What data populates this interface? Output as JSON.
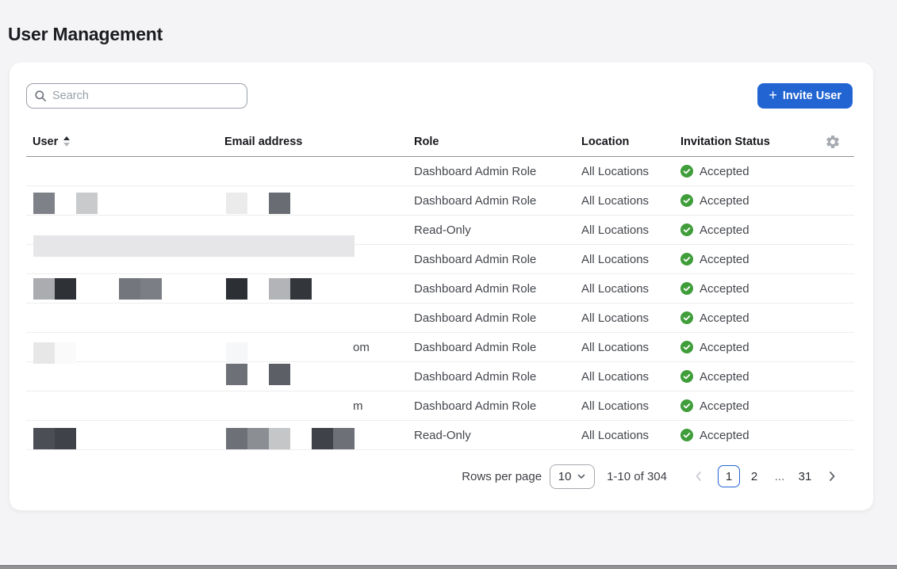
{
  "page": {
    "title": "User Management"
  },
  "toolbar": {
    "search_placeholder": "Search",
    "invite_button": "Invite User",
    "invite_plus": "+"
  },
  "table": {
    "headers": {
      "user": "User",
      "email": "Email address",
      "role": "Role",
      "location": "Location",
      "status": "Invitation Status"
    },
    "rows": [
      {
        "role": "Dashboard Admin Role",
        "location": "All Locations",
        "status": "Accepted",
        "email_tail": ""
      },
      {
        "role": "Dashboard Admin Role",
        "location": "All Locations",
        "status": "Accepted",
        "email_tail": ""
      },
      {
        "role": "Read-Only",
        "location": "All Locations",
        "status": "Accepted",
        "email_tail": ""
      },
      {
        "role": "Dashboard Admin Role",
        "location": "All Locations",
        "status": "Accepted",
        "email_tail": ""
      },
      {
        "role": "Dashboard Admin Role",
        "location": "All Locations",
        "status": "Accepted",
        "email_tail": ""
      },
      {
        "role": "Dashboard Admin Role",
        "location": "All Locations",
        "status": "Accepted",
        "email_tail": ""
      },
      {
        "role": "Dashboard Admin Role",
        "location": "All Locations",
        "status": "Accepted",
        "email_tail": "om"
      },
      {
        "role": "Dashboard Admin Role",
        "location": "All Locations",
        "status": "Accepted",
        "email_tail": ""
      },
      {
        "role": "Dashboard Admin Role",
        "location": "All Locations",
        "status": "Accepted",
        "email_tail": "m"
      },
      {
        "role": "Read-Only",
        "location": "All Locations",
        "status": "Accepted",
        "email_tail": ""
      }
    ]
  },
  "pagination": {
    "rows_per_page_label": "Rows per page",
    "rows_per_page_value": "10",
    "range": "1-10 of 304",
    "page_1": "1",
    "page_2": "2",
    "ellipsis": "...",
    "page_last": "31",
    "current_page": "1"
  },
  "colors": {
    "accent": "#2265d2",
    "success": "#3f9d3a"
  },
  "redaction_blocks": [
    {
      "row": 0,
      "col": 0,
      "span": 1,
      "color": "#7e8187"
    },
    {
      "row": 0,
      "col": 2,
      "span": 1,
      "color": "#c9cacc"
    },
    {
      "row": 0,
      "col": 9,
      "span": 1,
      "color": "#ebebec"
    },
    {
      "row": 0,
      "col": 11,
      "span": 1,
      "color": "#696c72"
    },
    {
      "row": 2,
      "col": 0,
      "span": 15,
      "color": "#e6e6e8"
    },
    {
      "row": 4,
      "col": 0,
      "span": 1,
      "color": "#aaacb0"
    },
    {
      "row": 4,
      "col": 1,
      "span": 1,
      "color": "#2e3136"
    },
    {
      "row": 4,
      "col": 4,
      "span": 1,
      "color": "#73767c"
    },
    {
      "row": 4,
      "col": 5,
      "span": 1,
      "color": "#7b7e84"
    },
    {
      "row": 4,
      "col": 9,
      "span": 1,
      "color": "#2c2f34"
    },
    {
      "row": 4,
      "col": 11,
      "span": 1,
      "color": "#b3b4b7"
    },
    {
      "row": 4,
      "col": 12,
      "span": 1,
      "color": "#33363b"
    },
    {
      "row": 7,
      "col": 0,
      "span": 1,
      "color": "#e7e7e8"
    },
    {
      "row": 7,
      "col": 1,
      "span": 1,
      "color": "#fafafa"
    },
    {
      "row": 7,
      "col": 9,
      "span": 1,
      "color": "#f6f7f8"
    },
    {
      "row": 8,
      "col": 9,
      "span": 1,
      "color": "#6d7076"
    },
    {
      "row": 8,
      "col": 11,
      "span": 1,
      "color": "#5c5f65"
    },
    {
      "row": 11,
      "col": 0,
      "span": 1,
      "color": "#4b4e54"
    },
    {
      "row": 11,
      "col": 1,
      "span": 1,
      "color": "#3f4248"
    },
    {
      "row": 11,
      "col": 9,
      "span": 1,
      "color": "#6d7076"
    },
    {
      "row": 11,
      "col": 10,
      "span": 1,
      "color": "#8b8e93"
    },
    {
      "row": 11,
      "col": 11,
      "span": 1,
      "color": "#c5c6c8"
    },
    {
      "row": 11,
      "col": 13,
      "span": 1,
      "color": "#3f4248"
    },
    {
      "row": 11,
      "col": 14,
      "span": 1,
      "color": "#6d7076"
    }
  ]
}
